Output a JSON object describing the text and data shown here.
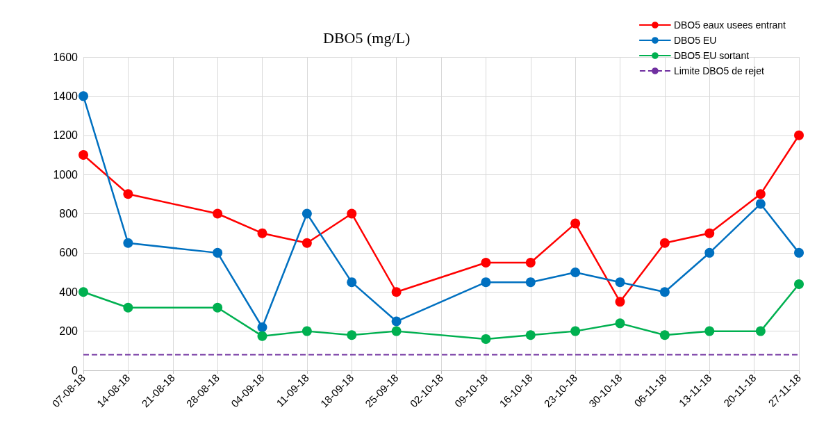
{
  "chart_data": {
    "type": "line",
    "title": "DBO5 (mg/L)",
    "x": [
      "--08-07",
      "--08-14",
      "--08-28",
      "--09-04",
      "--09-11",
      "--09-18",
      "--09-25",
      "--10-09",
      "--10-16",
      "--10-23",
      "--10-30",
      "--11-06",
      "--11-13",
      "--11-21",
      "--11-27"
    ],
    "series": [
      {
        "name": "DBO5 eaux usees entrant",
        "color": "#ff0000",
        "values": [
          1100,
          900,
          800,
          700,
          650,
          800,
          400,
          550,
          550,
          750,
          350,
          650,
          700,
          900,
          1200
        ]
      },
      {
        "name": "DBO5 EU",
        "color": "#0070c0",
        "values": [
          1400,
          650,
          600,
          220,
          800,
          450,
          250,
          450,
          450,
          500,
          450,
          400,
          600,
          850,
          600
        ]
      },
      {
        "name": "DBO5 EU sortant",
        "color": "#00b050",
        "values": [
          400,
          320,
          320,
          175,
          200,
          180,
          200,
          160,
          180,
          200,
          240,
          180,
          200,
          200,
          440
        ]
      }
    ],
    "ref_lines": [
      {
        "axis": "y",
        "value": 80,
        "label": "Limite DBO5 de rejet",
        "color": "#7030a0",
        "line_style": "dashed"
      }
    ],
    "xlim": [
      "--08-07",
      "--11-27"
    ],
    "xticks": [
      {
        "value": "--08-07",
        "label": "07-08-18"
      },
      {
        "value": "--08-14",
        "label": "14-08-18"
      },
      {
        "value": "--08-21",
        "label": "21-08-18"
      },
      {
        "value": "--08-28",
        "label": "28-08-18"
      },
      {
        "value": "--09-04",
        "label": "04-09-18"
      },
      {
        "value": "--09-11",
        "label": "11-09-18"
      },
      {
        "value": "--09-18",
        "label": "18-09-18"
      },
      {
        "value": "--09-25",
        "label": "25-09-18"
      },
      {
        "value": "--10-02",
        "label": "02-10-18"
      },
      {
        "value": "--10-09",
        "label": "09-10-18"
      },
      {
        "value": "--10-16",
        "label": "16-10-18"
      },
      {
        "value": "--10-23",
        "label": "23-10-18"
      },
      {
        "value": "--10-30",
        "label": "30-10-18"
      },
      {
        "value": "--11-06",
        "label": "06-11-18"
      },
      {
        "value": "--11-13",
        "label": "13-11-18"
      },
      {
        "value": "--11-20",
        "label": "20-11-18"
      },
      {
        "value": "--11-27",
        "label": "27-11-18"
      }
    ],
    "ylim": [
      0,
      1600
    ],
    "yticks": [
      0,
      200,
      400,
      600,
      800,
      1000,
      1200,
      1400,
      1600
    ],
    "grid": true,
    "legend": "top right",
    "marker": "circle",
    "line_style": "solid"
  }
}
